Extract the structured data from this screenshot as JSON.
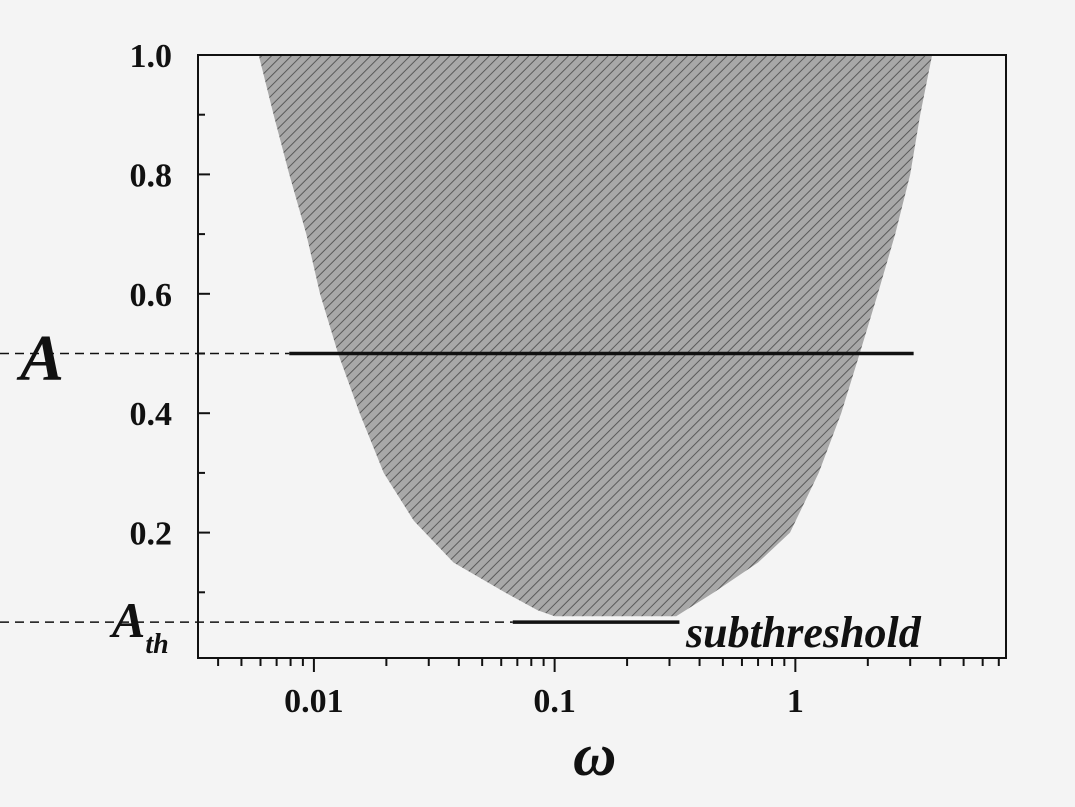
{
  "chart_data": {
    "type": "area",
    "xscale": "log",
    "xlim": [
      0.0033,
      7.5
    ],
    "ylim": [
      0,
      1.0
    ],
    "xlabel": "ω",
    "ylabel": "A",
    "x_ticks": [
      {
        "value": 0.01,
        "label": "0.01"
      },
      {
        "value": 0.1,
        "label": "0.1"
      },
      {
        "value": 1,
        "label": "1"
      }
    ],
    "y_ticks": [
      {
        "value": 0.2,
        "label": "0.2"
      },
      {
        "value": 0.4,
        "label": "0.4"
      },
      {
        "value": 0.6,
        "label": "0.6"
      },
      {
        "value": 0.8,
        "label": "0.8"
      },
      {
        "value": 1.0,
        "label": "1.0"
      }
    ],
    "threshold": {
      "value": 0.05,
      "label": "A",
      "subscript": "th"
    },
    "region": {
      "left_boundary": [
        {
          "x": 0.0059,
          "y": 1.0
        },
        {
          "x": 0.0068,
          "y": 0.9
        },
        {
          "x": 0.0079,
          "y": 0.8
        },
        {
          "x": 0.0093,
          "y": 0.7
        },
        {
          "x": 0.0106,
          "y": 0.6
        },
        {
          "x": 0.0126,
          "y": 0.5
        },
        {
          "x": 0.0155,
          "y": 0.4
        },
        {
          "x": 0.0195,
          "y": 0.3
        },
        {
          "x": 0.026,
          "y": 0.22
        },
        {
          "x": 0.038,
          "y": 0.15
        },
        {
          "x": 0.062,
          "y": 0.1
        },
        {
          "x": 0.085,
          "y": 0.07
        },
        {
          "x": 0.1,
          "y": 0.06
        }
      ],
      "right_boundary": [
        {
          "x": 0.32,
          "y": 0.06
        },
        {
          "x": 0.46,
          "y": 0.1
        },
        {
          "x": 0.7,
          "y": 0.15
        },
        {
          "x": 0.95,
          "y": 0.2
        },
        {
          "x": 1.25,
          "y": 0.3
        },
        {
          "x": 1.55,
          "y": 0.4
        },
        {
          "x": 1.85,
          "y": 0.5
        },
        {
          "x": 2.2,
          "y": 0.6
        },
        {
          "x": 2.6,
          "y": 0.7
        },
        {
          "x": 3.0,
          "y": 0.8
        },
        {
          "x": 3.3,
          "y": 0.9
        },
        {
          "x": 3.7,
          "y": 1.0
        }
      ],
      "fill": "#a8a8a8",
      "hatch": "#5a5a5a"
    },
    "reference_lines": [
      {
        "y": 0.5,
        "x_start": 0.0079,
        "x_end": 3.1
      },
      {
        "y": 0.05,
        "x_start": 0.067,
        "x_end": 0.33
      }
    ],
    "annotations": [
      {
        "text": "subthreshold"
      }
    ]
  }
}
